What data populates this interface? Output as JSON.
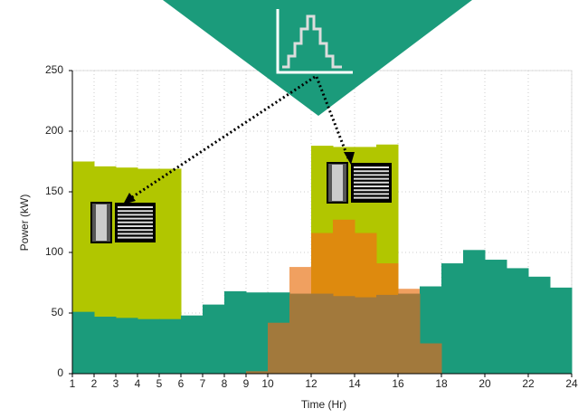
{
  "chart_data": {
    "type": "step-area",
    "x_label": "Time (Hr)",
    "y_label": "Power (kW)",
    "x": [
      1,
      2,
      3,
      4,
      5,
      6,
      7,
      8,
      9,
      10,
      11,
      12,
      13,
      14,
      15,
      16,
      17,
      18,
      19,
      20,
      21,
      22,
      23
    ],
    "xlim": [
      1,
      24
    ],
    "xticks": [
      1,
      2,
      3,
      4,
      5,
      6,
      7,
      8,
      9,
      10,
      12,
      14,
      16,
      18,
      20,
      22,
      24
    ],
    "ylim": [
      0,
      250
    ],
    "yticks": [
      0,
      50,
      100,
      150,
      200,
      250
    ],
    "grid": true,
    "series": [
      {
        "color": "#b1c600",
        "values": [
          175,
          171,
          170,
          169,
          169,
          null,
          null,
          null,
          null,
          null,
          null,
          188,
          187,
          187,
          189,
          null,
          null,
          null,
          null,
          null,
          null,
          null,
          null
        ]
      },
      {
        "color": "#f0a060",
        "values": [
          null,
          null,
          null,
          null,
          null,
          null,
          null,
          null,
          null,
          null,
          88,
          null,
          null,
          null,
          null,
          70,
          null,
          null,
          null,
          null,
          null,
          null,
          null
        ]
      },
      {
        "color": "#de8a0e",
        "values": [
          null,
          null,
          null,
          null,
          null,
          null,
          null,
          null,
          null,
          null,
          null,
          116,
          127,
          116,
          91,
          null,
          null,
          null,
          null,
          null,
          null,
          null,
          null
        ]
      },
      {
        "color": "#1b9b7b",
        "values": [
          51,
          47,
          46,
          45,
          45,
          48,
          57,
          68,
          67,
          67,
          null,
          null,
          null,
          null,
          null,
          null,
          72,
          91,
          102,
          94,
          87,
          80,
          71
        ]
      },
      {
        "color": "#a2793c",
        "values": [
          null,
          null,
          null,
          null,
          null,
          null,
          null,
          null,
          2,
          42,
          66,
          66,
          64,
          63,
          65,
          66,
          25,
          null,
          null,
          null,
          null,
          null,
          null
        ]
      }
    ]
  }
}
